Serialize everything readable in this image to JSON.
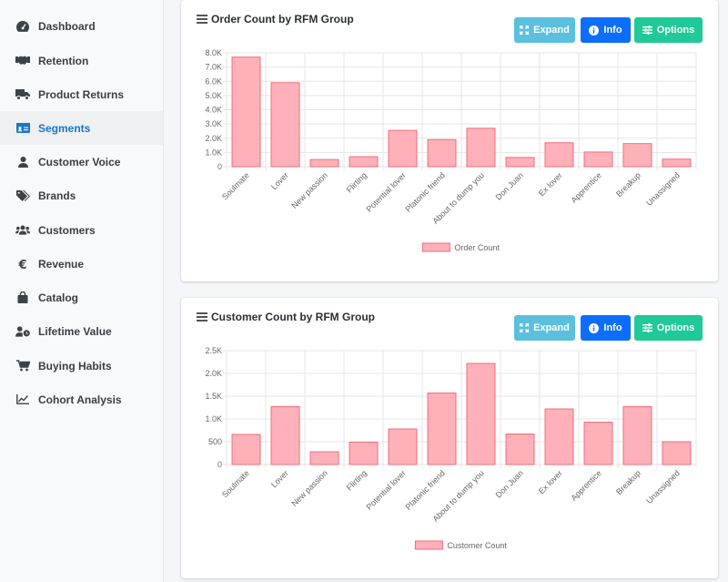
{
  "sidebar": {
    "items": [
      {
        "label": "Dashboard",
        "icon": "dashboard-icon",
        "active": false
      },
      {
        "label": "Retention",
        "icon": "handshake-icon",
        "active": false
      },
      {
        "label": "Product Returns",
        "icon": "truck-icon",
        "active": false
      },
      {
        "label": "Segments",
        "icon": "id-card-icon",
        "active": true
      },
      {
        "label": "Customer Voice",
        "icon": "user-icon",
        "active": false
      },
      {
        "label": "Brands",
        "icon": "tags-icon",
        "active": false
      },
      {
        "label": "Customers",
        "icon": "users-icon",
        "active": false
      },
      {
        "label": "Revenue",
        "icon": "euro-icon",
        "active": false
      },
      {
        "label": "Catalog",
        "icon": "shopping-bag-icon",
        "active": false
      },
      {
        "label": "Lifetime Value",
        "icon": "user-clock-icon",
        "active": false
      },
      {
        "label": "Buying Habits",
        "icon": "shopping-cart-icon",
        "active": false
      },
      {
        "label": "Cohort Analysis",
        "icon": "line-chart-icon",
        "active": false
      }
    ]
  },
  "buttons": {
    "expand": "Expand",
    "info": "Info",
    "options": "Options"
  },
  "colors": {
    "bar_fill": "#ffb1b9",
    "bar_stroke": "#f26b7a",
    "expand": "#5bc0de",
    "info": "#0d6efd",
    "options": "#20c997",
    "active": "#1877c9"
  },
  "chart_data": [
    {
      "type": "bar",
      "title": "Order Count by RFM Group",
      "categories": [
        "Soulmate",
        "Lover",
        "New passion",
        "Flirting",
        "Potential lover",
        "Platonic friend",
        "About to dump you",
        "Don Juan",
        "Ex lover",
        "Apprentice",
        "Breakup",
        "Unassigned"
      ],
      "series": [
        {
          "name": "Order Count",
          "values": [
            7700,
            5900,
            500,
            700,
            2550,
            1900,
            2700,
            650,
            1680,
            1030,
            1620,
            530
          ]
        }
      ],
      "ylim": [
        0,
        8000
      ],
      "yticks": [
        0,
        1000,
        2000,
        3000,
        4000,
        5000,
        6000,
        7000,
        8000
      ],
      "ytick_labels": [
        "0",
        "1.0K",
        "2.0K",
        "3.0K",
        "4.0K",
        "5.0K",
        "6.0K",
        "7.0K",
        "8.0K"
      ],
      "grid": true,
      "legend": "bottom"
    },
    {
      "type": "bar",
      "title": "Customer Count by RFM Group",
      "categories": [
        "Soulmate",
        "Lover",
        "New passion",
        "Flirting",
        "Potential lover",
        "Platonic friend",
        "About to dump you",
        "Don Juan",
        "Ex lover",
        "Apprentice",
        "Breakup",
        "Unassigned"
      ],
      "series": [
        {
          "name": "Customer Count",
          "values": [
            660,
            1270,
            280,
            490,
            780,
            1570,
            2220,
            670,
            1220,
            930,
            1270,
            500
          ]
        }
      ],
      "ylim": [
        0,
        2500
      ],
      "yticks": [
        0,
        500,
        1000,
        1500,
        2000,
        2500
      ],
      "ytick_labels": [
        "0",
        "500",
        "1.0K",
        "1.5K",
        "2.0K",
        "2.5K"
      ],
      "grid": true,
      "legend": "bottom"
    }
  ]
}
